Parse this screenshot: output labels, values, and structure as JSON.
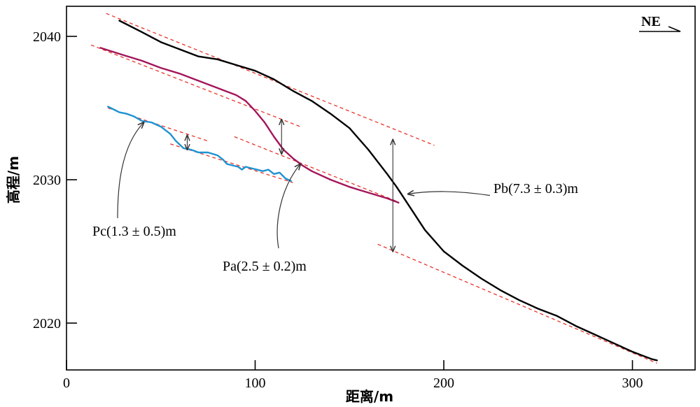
{
  "chart_data": {
    "type": "line",
    "xlabel": "距离/m",
    "ylabel": "高程/m",
    "xlim": [
      0,
      333
    ],
    "ylim": [
      2017,
      2042
    ],
    "xticks": [
      0,
      100,
      200,
      300
    ],
    "yticks": [
      2020,
      2030,
      2040
    ],
    "grid": false,
    "direction_label": "NE",
    "colors": {
      "profile_b": "#000000",
      "profile_a": "#a3155a",
      "profile_c": "#1e93d2",
      "fit_lines": "#e8352b",
      "annotation": "#333333"
    },
    "series": [
      {
        "key": "b",
        "color": "#000000",
        "points": [
          [
            28,
            2041.1
          ],
          [
            40,
            2040.3
          ],
          [
            50,
            2039.6
          ],
          [
            60,
            2039.1
          ],
          [
            70,
            2038.6
          ],
          [
            80,
            2038.4
          ],
          [
            90,
            2038.0
          ],
          [
            100,
            2037.6
          ],
          [
            110,
            2037.0
          ],
          [
            120,
            2036.2
          ],
          [
            130,
            2035.5
          ],
          [
            140,
            2034.6
          ],
          [
            150,
            2033.6
          ],
          [
            160,
            2032.1
          ],
          [
            170,
            2030.4
          ],
          [
            175,
            2029.5
          ],
          [
            180,
            2028.5
          ],
          [
            190,
            2026.5
          ],
          [
            200,
            2025.0
          ],
          [
            210,
            2024.0
          ],
          [
            220,
            2023.1
          ],
          [
            230,
            2022.3
          ],
          [
            240,
            2021.6
          ],
          [
            250,
            2021.0
          ],
          [
            260,
            2020.5
          ],
          [
            270,
            2019.8
          ],
          [
            280,
            2019.2
          ],
          [
            290,
            2018.6
          ],
          [
            300,
            2018.0
          ],
          [
            310,
            2017.5
          ],
          [
            313,
            2017.4
          ]
        ]
      },
      {
        "key": "a",
        "color": "#a3155a",
        "points": [
          [
            18,
            2039.2
          ],
          [
            30,
            2038.7
          ],
          [
            40,
            2038.3
          ],
          [
            50,
            2037.8
          ],
          [
            60,
            2037.4
          ],
          [
            70,
            2036.9
          ],
          [
            80,
            2036.4
          ],
          [
            90,
            2035.9
          ],
          [
            95,
            2035.5
          ],
          [
            100,
            2034.8
          ],
          [
            105,
            2034.0
          ],
          [
            110,
            2033.0
          ],
          [
            115,
            2032.1
          ],
          [
            120,
            2031.5
          ],
          [
            125,
            2031.0
          ],
          [
            130,
            2030.6
          ],
          [
            140,
            2030.0
          ],
          [
            150,
            2029.5
          ],
          [
            160,
            2029.1
          ],
          [
            170,
            2028.7
          ],
          [
            176,
            2028.4
          ]
        ]
      },
      {
        "key": "c",
        "color": "#1e93d2",
        "points": [
          [
            22,
            2035.1
          ],
          [
            25,
            2034.9
          ],
          [
            28,
            2034.7
          ],
          [
            32,
            2034.6
          ],
          [
            36,
            2034.4
          ],
          [
            40,
            2034.1
          ],
          [
            45,
            2034.0
          ],
          [
            50,
            2033.7
          ],
          [
            55,
            2033.2
          ],
          [
            58,
            2032.7
          ],
          [
            62,
            2032.2
          ],
          [
            66,
            2032.1
          ],
          [
            70,
            2031.9
          ],
          [
            75,
            2031.9
          ],
          [
            80,
            2031.7
          ],
          [
            83,
            2031.4
          ],
          [
            85,
            2031.1
          ],
          [
            88,
            2031.0
          ],
          [
            91,
            2030.9
          ],
          [
            93,
            2030.7
          ],
          [
            95,
            2030.9
          ],
          [
            98,
            2030.8
          ],
          [
            101,
            2030.7
          ],
          [
            104,
            2030.6
          ],
          [
            107,
            2030.7
          ],
          [
            110,
            2030.4
          ],
          [
            113,
            2030.5
          ],
          [
            116,
            2030.1
          ],
          [
            119,
            2029.9
          ]
        ]
      }
    ],
    "fit_lines": [
      {
        "from": [
          21,
          2041.6
        ],
        "to": [
          195,
          2032.4
        ]
      },
      {
        "from": [
          165,
          2025.5
        ],
        "to": [
          313,
          2017.2
        ]
      },
      {
        "from": [
          13,
          2039.4
        ],
        "to": [
          124,
          2033.7
        ]
      },
      {
        "from": [
          89,
          2033.0
        ],
        "to": [
          175,
          2028.5
        ]
      },
      {
        "from": [
          22,
          2035.0
        ],
        "to": [
          75,
          2032.7
        ]
      },
      {
        "from": [
          55,
          2032.5
        ],
        "to": [
          120,
          2029.8
        ]
      }
    ],
    "offset_markers": [
      {
        "x": 114,
        "top": 2034.2,
        "bottom": 2031.8
      },
      {
        "x": 64,
        "top": 2033.1,
        "bottom": 2032.1
      },
      {
        "x": 173,
        "top": 2032.8,
        "bottom": 2025.0
      }
    ],
    "annotations": [
      {
        "text": "Pb(7.3 ± 0.3)m",
        "arrow_to": [
          181,
          2029.0
        ]
      },
      {
        "text": "Pa(2.5 ± 0.2)m",
        "arrow_to": [
          124,
          2031.1
        ]
      },
      {
        "text": "Pc(1.3 ± 0.5)m",
        "arrow_to": [
          41,
          2034.0
        ]
      }
    ]
  }
}
